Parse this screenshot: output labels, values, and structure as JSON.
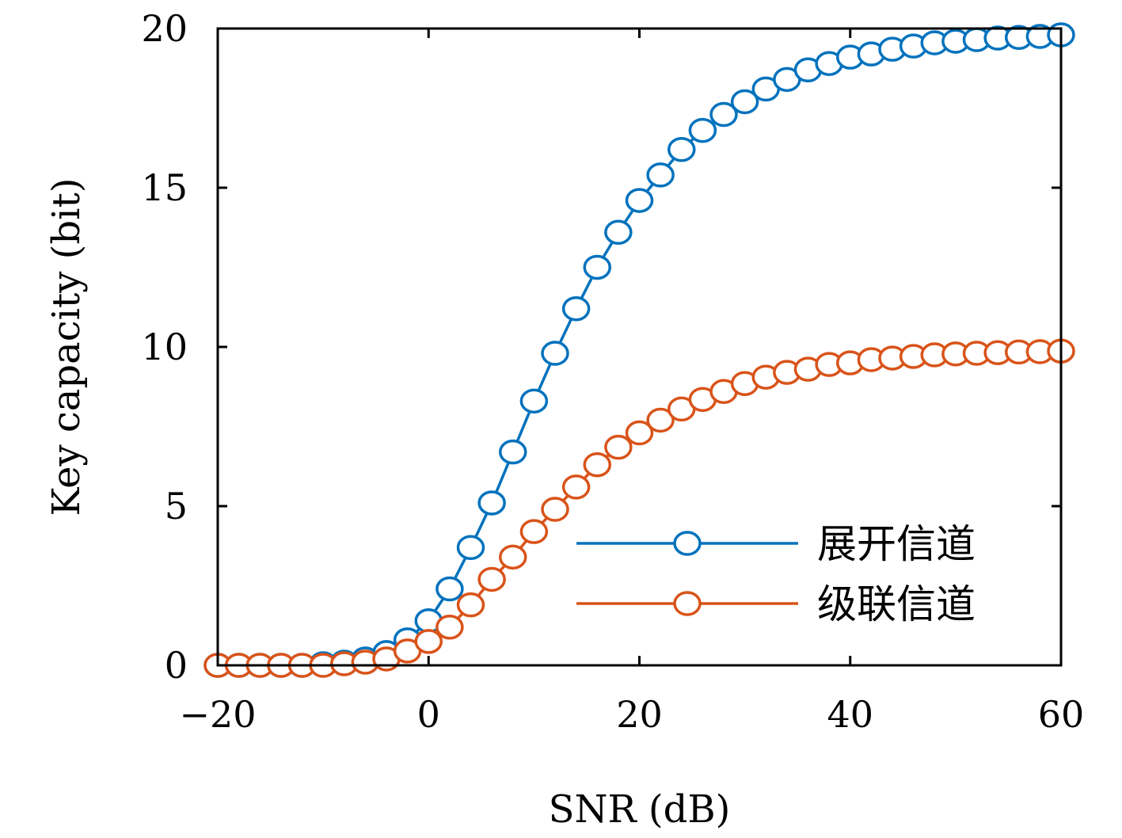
{
  "chart_data": {
    "type": "line",
    "xlabel": "SNR (dB)",
    "ylabel": "Key capacity (bit)",
    "xlim": [
      -20,
      60
    ],
    "ylim": [
      0,
      20
    ],
    "xticks": [
      -20,
      0,
      20,
      40,
      60
    ],
    "xtick_labels": [
      "−20",
      "0",
      "20",
      "40",
      "60"
    ],
    "yticks": [
      0,
      5,
      10,
      15,
      20
    ],
    "ytick_labels": [
      "0",
      "5",
      "10",
      "15",
      "20"
    ],
    "grid": false,
    "legend_position": "bottom-right",
    "x": [
      -20,
      -18,
      -16,
      -14,
      -12,
      -10,
      -8,
      -6,
      -4,
      -2,
      0,
      2,
      4,
      6,
      8,
      10,
      12,
      14,
      16,
      18,
      20,
      22,
      24,
      26,
      28,
      30,
      32,
      34,
      36,
      38,
      40,
      42,
      44,
      46,
      48,
      50,
      52,
      54,
      56,
      58,
      60
    ],
    "series": [
      {
        "name": "展开信道",
        "color": "#0072BD",
        "marker": "circle-open",
        "values": [
          0.0,
          0.0,
          0.0,
          0.0,
          0.0,
          0.05,
          0.1,
          0.2,
          0.4,
          0.8,
          1.4,
          2.4,
          3.7,
          5.1,
          6.7,
          8.3,
          9.8,
          11.2,
          12.5,
          13.6,
          14.6,
          15.4,
          16.2,
          16.8,
          17.3,
          17.7,
          18.1,
          18.4,
          18.7,
          18.9,
          19.1,
          19.2,
          19.35,
          19.45,
          19.55,
          19.6,
          19.65,
          19.7,
          19.72,
          19.75,
          19.8
        ]
      },
      {
        "name": "级联信道",
        "color": "#D95319",
        "marker": "circle-open",
        "values": [
          0.0,
          0.0,
          0.0,
          0.0,
          0.0,
          0.0,
          0.05,
          0.1,
          0.2,
          0.45,
          0.75,
          1.2,
          1.9,
          2.7,
          3.4,
          4.2,
          4.9,
          5.6,
          6.3,
          6.85,
          7.3,
          7.7,
          8.05,
          8.35,
          8.6,
          8.85,
          9.05,
          9.2,
          9.3,
          9.45,
          9.5,
          9.6,
          9.65,
          9.7,
          9.75,
          9.78,
          9.8,
          9.82,
          9.84,
          9.85,
          9.87
        ]
      }
    ]
  }
}
